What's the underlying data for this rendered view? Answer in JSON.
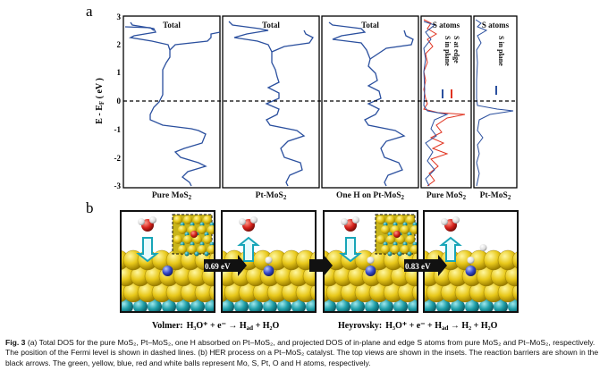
{
  "figure": {
    "label_a": "a",
    "label_b": "b",
    "yaxis_label": "E - E",
    "yaxis_sub": "F",
    "yaxis_unit": " ( eV )",
    "yticks": [
      "3",
      "2",
      "1",
      "0",
      "-1",
      "-2",
      "-3"
    ],
    "panel_titles": [
      "Total",
      "Total",
      "Total",
      "S atoms",
      "S atoms"
    ],
    "panel_bottom_labels": [
      "Pure MoS",
      "Pt-MoS",
      "One H on Pt-MoS",
      "Pure MoS",
      "Pt-MoS"
    ],
    "subscript": "2",
    "legend_pure": [
      "S in plane",
      "S at edge"
    ],
    "legend_pt": [
      "S in plane"
    ],
    "colors": {
      "dos_blue": "#2a4f9e",
      "edge_red": "#e0321f",
      "arrow_black": "#111111"
    }
  },
  "reaction": {
    "barrier_1": "0.69 eV",
    "barrier_2": "0.83 eV",
    "volmer_label": "Volmer:",
    "volmer_eq": "H₃O⁺ + e⁻ → H",
    "volmer_sub": "ad",
    "volmer_tail": " + H₂O",
    "heyrovsky_label": "Heyrovsky:",
    "heyrovsky_eq": "H₃O⁺ + e⁻ + H",
    "heyrovsky_sub": "ad",
    "heyrovsky_tail": " → H₂ + H₂O"
  },
  "caption": {
    "fig_num": "Fig. 3",
    "text": " (a) Total DOS for the pure MoS₂, Pt–MoS₂, one H absorbed on Pt–MoS₂, and projected DOS of in-plane and edge S atoms from pure MoS₂ and Pt–MoS₂, respectively. The position of the Fermi level is shown in dashed lines. (b) HER process on a Pt–MoS₂ catalyst. The top views are shown in the insets. The reaction barriers are shown in the black arrows. The green, yellow, blue, red and white balls represent Mo, S, Pt, O and H atoms, respectively."
  }
}
